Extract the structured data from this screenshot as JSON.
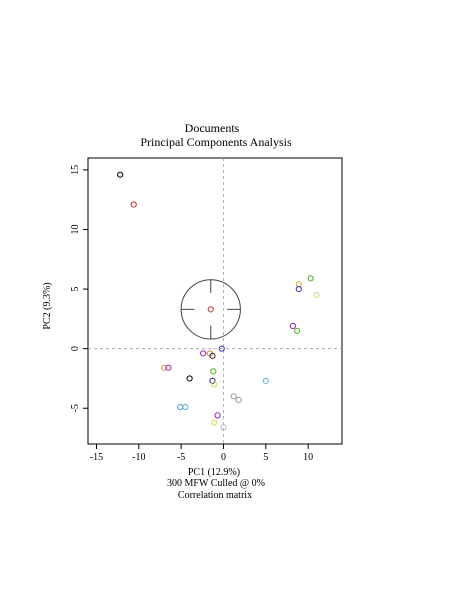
{
  "chart_data": {
    "type": "scatter",
    "title": "Documents",
    "subtitle": "Principal Components Analysis",
    "xlabel": "PC1 (12.9%)",
    "ylabel": "PC2 (9.3%)",
    "notes": [
      "300 MFW  Culled @ 0%",
      "Correlation matrix"
    ],
    "xlim": [
      -16,
      14
    ],
    "ylim": [
      -8,
      16
    ],
    "xticks": [
      -15,
      -10,
      -5,
      0,
      5,
      10
    ],
    "yticks": [
      -5,
      0,
      5,
      10,
      15
    ],
    "reference_lines": {
      "x": 0,
      "y": 0,
      "style": "dashed",
      "color": "#9e9e9e"
    },
    "loading_circle": {
      "cx": -1.5,
      "cy": 3.3,
      "r": 3.5,
      "center_color": "#cc3333"
    },
    "points": [
      {
        "x": -12.2,
        "y": 14.6,
        "color": "#000000"
      },
      {
        "x": -10.6,
        "y": 12.1,
        "color": "#cc2222"
      },
      {
        "x": 10.3,
        "y": 5.9,
        "color": "#44aa22"
      },
      {
        "x": 8.9,
        "y": 5.4,
        "color": "#ccaa22"
      },
      {
        "x": 8.9,
        "y": 5.0,
        "color": "#3333cc"
      },
      {
        "x": 11.0,
        "y": 4.5,
        "color": "#ccdd77"
      },
      {
        "x": 8.2,
        "y": 1.9,
        "color": "#9922bb"
      },
      {
        "x": 8.7,
        "y": 1.5,
        "color": "#44bb22"
      },
      {
        "x": -0.2,
        "y": 0.0,
        "color": "#3333cc"
      },
      {
        "x": -2.4,
        "y": -0.4,
        "color": "#9922bb"
      },
      {
        "x": -1.6,
        "y": -0.4,
        "color": "#cc8833"
      },
      {
        "x": -1.3,
        "y": -0.6,
        "color": "#442233"
      },
      {
        "x": -7.0,
        "y": -1.6,
        "color": "#dd9933"
      },
      {
        "x": -6.5,
        "y": -1.6,
        "color": "#9922bb"
      },
      {
        "x": -1.2,
        "y": -1.9,
        "color": "#44bb22"
      },
      {
        "x": -4.0,
        "y": -2.5,
        "color": "#000000"
      },
      {
        "x": -1.3,
        "y": -2.7,
        "color": "#3322aa"
      },
      {
        "x": 5.0,
        "y": -2.7,
        "color": "#55bbcc"
      },
      {
        "x": -1.1,
        "y": -3.0,
        "color": "#dddd44"
      },
      {
        "x": 1.2,
        "y": -4.0,
        "color": "#999999"
      },
      {
        "x": 1.8,
        "y": -4.3,
        "color": "#999999"
      },
      {
        "x": -5.1,
        "y": -4.9,
        "color": "#4499ee"
      },
      {
        "x": -4.5,
        "y": -4.9,
        "color": "#55aacc"
      },
      {
        "x": -0.7,
        "y": -5.6,
        "color": "#9922bb"
      },
      {
        "x": -1.1,
        "y": -6.2,
        "color": "#dddd44"
      },
      {
        "x": 0.0,
        "y": -6.6,
        "color": "#bbbbbb"
      }
    ]
  }
}
